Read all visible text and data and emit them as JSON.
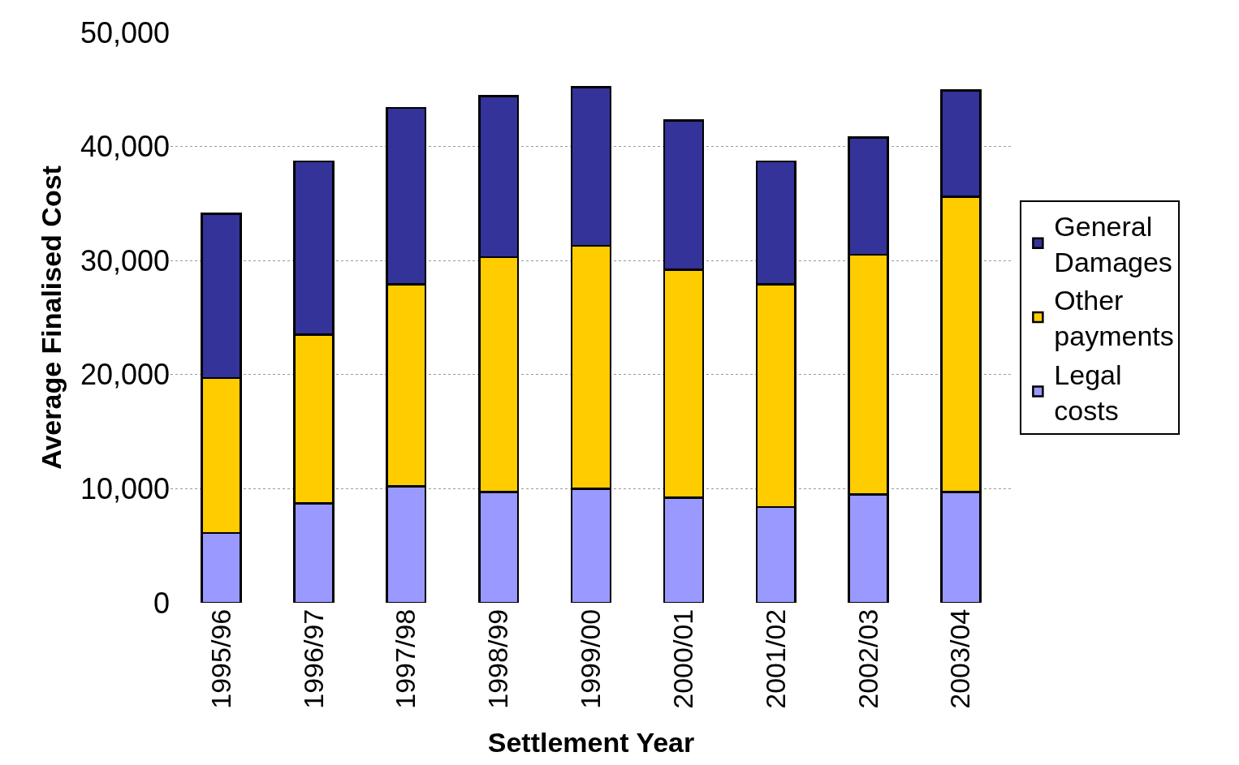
{
  "chart_data": {
    "type": "bar",
    "stacked": true,
    "xlabel": "Settlement Year",
    "ylabel": "Average Finalised Cost",
    "categories": [
      "1995/96",
      "1996/97",
      "1997/98",
      "1998/99",
      "1999/00",
      "2000/01",
      "2001/02",
      "2002/03",
      "2003/04"
    ],
    "series": [
      {
        "name": "Legal costs",
        "color": "#9999ff",
        "values": [
          6100,
          8700,
          10200,
          9700,
          10000,
          9200,
          8400,
          9500,
          9700
        ]
      },
      {
        "name": "Other payments",
        "color": "#ffcc00",
        "values": [
          13600,
          14800,
          17700,
          20600,
          21300,
          20000,
          19500,
          21000,
          25900
        ]
      },
      {
        "name": "General Damages",
        "color": "#333399",
        "values": [
          14400,
          15200,
          15500,
          14100,
          13900,
          13100,
          10800,
          10300,
          9300
        ]
      }
    ],
    "ylim": [
      0,
      50000
    ],
    "yticks": [
      {
        "value": 0,
        "label": "0"
      },
      {
        "value": 10000,
        "label": "10,000"
      },
      {
        "value": 20000,
        "label": "20,000"
      },
      {
        "value": 30000,
        "label": "30,000"
      },
      {
        "value": 40000,
        "label": "40,000"
      },
      {
        "value": 50000,
        "label": "50,000"
      }
    ],
    "grid": "y",
    "legend": "right"
  }
}
